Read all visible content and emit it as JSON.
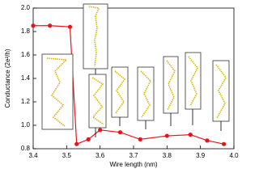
{
  "chart_data": {
    "type": "line",
    "x_label": "Wire length (nm)",
    "y_label": "Conductance (2e²/h)",
    "x": [
      3.4,
      3.45,
      3.51,
      3.53,
      3.565,
      3.6,
      3.66,
      3.72,
      3.8,
      3.87,
      3.92,
      3.97
    ],
    "series": [
      {
        "color": "#e8141a",
        "values": [
          1.85,
          1.85,
          1.84,
          0.84,
          0.88,
          0.96,
          0.94,
          0.88,
          0.91,
          0.92,
          0.87,
          0.84
        ]
      }
    ],
    "xlim": [
      3.4,
      4.0
    ],
    "xticks": [
      3.4,
      3.5,
      3.6,
      3.7,
      3.8,
      3.9,
      {
        "value": 4,
        "label": "4.0"
      }
    ],
    "ylim": [
      0.8,
      2.0
    ],
    "yticks": [
      0.8,
      {
        "value": 1,
        "label": "1.0"
      },
      1.2,
      1.4,
      1.6,
      1.8,
      {
        "value": 2,
        "label": "2.0"
      }
    ]
  }
}
